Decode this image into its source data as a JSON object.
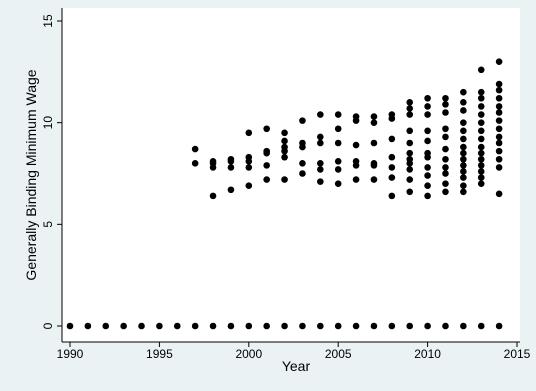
{
  "colors": {
    "background": "#eaf2f3",
    "plot_background": "#ffffff",
    "marker": "#000000",
    "axis": "#000000"
  },
  "chart_data": {
    "type": "scatter",
    "title": "",
    "xlabel": "Year",
    "ylabel": "Generally Binding Minimum Wage",
    "xlim": [
      1990,
      2015
    ],
    "ylim": [
      0,
      15
    ],
    "xticks": [
      1990,
      1995,
      2000,
      2005,
      2010,
      2015
    ],
    "yticks": [
      0,
      5,
      10,
      15
    ],
    "grid": false,
    "legend": "none",
    "marker": "filled-circle",
    "points": [
      [
        1990,
        0
      ],
      [
        1991,
        0
      ],
      [
        1992,
        0
      ],
      [
        1993,
        0
      ],
      [
        1994,
        0
      ],
      [
        1995,
        0
      ],
      [
        1996,
        0
      ],
      [
        1997,
        0
      ],
      [
        1998,
        0
      ],
      [
        1999,
        0
      ],
      [
        2000,
        0
      ],
      [
        2001,
        0
      ],
      [
        2002,
        0
      ],
      [
        2003,
        0
      ],
      [
        2004,
        0
      ],
      [
        2005,
        0
      ],
      [
        2006,
        0
      ],
      [
        2007,
        0
      ],
      [
        2008,
        0
      ],
      [
        2009,
        0
      ],
      [
        2010,
        0
      ],
      [
        2011,
        0
      ],
      [
        2012,
        0
      ],
      [
        2013,
        0
      ],
      [
        2014,
        0
      ],
      [
        1997,
        8.7
      ],
      [
        1997,
        8.0
      ],
      [
        1998,
        8.1
      ],
      [
        1998,
        8.0
      ],
      [
        1998,
        7.8
      ],
      [
        1998,
        6.4
      ],
      [
        1999,
        8.2
      ],
      [
        1999,
        8.1
      ],
      [
        1999,
        7.8
      ],
      [
        1999,
        6.7
      ],
      [
        2000,
        9.5
      ],
      [
        2000,
        8.3
      ],
      [
        2000,
        8.1
      ],
      [
        2000,
        7.8
      ],
      [
        2000,
        6.9
      ],
      [
        2001,
        9.7
      ],
      [
        2001,
        8.6
      ],
      [
        2001,
        8.5
      ],
      [
        2001,
        7.9
      ],
      [
        2001,
        7.2
      ],
      [
        2002,
        9.5
      ],
      [
        2002,
        9.1
      ],
      [
        2002,
        8.8
      ],
      [
        2002,
        8.6
      ],
      [
        2002,
        8.3
      ],
      [
        2002,
        7.2
      ],
      [
        2003,
        10.1
      ],
      [
        2003,
        9.0
      ],
      [
        2003,
        8.8
      ],
      [
        2003,
        8.0
      ],
      [
        2003,
        7.5
      ],
      [
        2004,
        10.4
      ],
      [
        2004,
        9.3
      ],
      [
        2004,
        9.0
      ],
      [
        2004,
        8.0
      ],
      [
        2004,
        7.7
      ],
      [
        2004,
        7.1
      ],
      [
        2005,
        10.4
      ],
      [
        2005,
        9.7
      ],
      [
        2005,
        9.0
      ],
      [
        2005,
        8.1
      ],
      [
        2005,
        7.7
      ],
      [
        2005,
        7.0
      ],
      [
        2006,
        10.3
      ],
      [
        2006,
        10.1
      ],
      [
        2006,
        8.9
      ],
      [
        2006,
        8.1
      ],
      [
        2006,
        7.9
      ],
      [
        2006,
        7.2
      ],
      [
        2007,
        10.3
      ],
      [
        2007,
        10.0
      ],
      [
        2007,
        9.0
      ],
      [
        2007,
        8.0
      ],
      [
        2007,
        7.9
      ],
      [
        2007,
        7.2
      ],
      [
        2008,
        10.4
      ],
      [
        2008,
        10.2
      ],
      [
        2008,
        9.2
      ],
      [
        2008,
        8.3
      ],
      [
        2008,
        7.8
      ],
      [
        2008,
        7.3
      ],
      [
        2008,
        6.4
      ],
      [
        2009,
        11.0
      ],
      [
        2009,
        10.7
      ],
      [
        2009,
        10.4
      ],
      [
        2009,
        9.6
      ],
      [
        2009,
        9.0
      ],
      [
        2009,
        8.5
      ],
      [
        2009,
        8.2
      ],
      [
        2009,
        8.0
      ],
      [
        2009,
        7.7
      ],
      [
        2009,
        7.2
      ],
      [
        2009,
        6.6
      ],
      [
        2010,
        11.2
      ],
      [
        2010,
        10.8
      ],
      [
        2010,
        10.4
      ],
      [
        2010,
        9.6
      ],
      [
        2010,
        9.1
      ],
      [
        2010,
        8.5
      ],
      [
        2010,
        8.3
      ],
      [
        2010,
        7.8
      ],
      [
        2010,
        7.4
      ],
      [
        2010,
        6.9
      ],
      [
        2010,
        6.4
      ],
      [
        2011,
        11.2
      ],
      [
        2011,
        10.9
      ],
      [
        2011,
        10.5
      ],
      [
        2011,
        9.7
      ],
      [
        2011,
        9.3
      ],
      [
        2011,
        8.7
      ],
      [
        2011,
        8.2
      ],
      [
        2011,
        7.8
      ],
      [
        2011,
        7.5
      ],
      [
        2011,
        7.0
      ],
      [
        2011,
        6.6
      ],
      [
        2012,
        11.5
      ],
      [
        2012,
        11.0
      ],
      [
        2012,
        10.6
      ],
      [
        2012,
        10.0
      ],
      [
        2012,
        9.6
      ],
      [
        2012,
        9.2
      ],
      [
        2012,
        8.8
      ],
      [
        2012,
        8.5
      ],
      [
        2012,
        8.2
      ],
      [
        2012,
        7.9
      ],
      [
        2012,
        7.6
      ],
      [
        2012,
        7.3
      ],
      [
        2012,
        6.9
      ],
      [
        2012,
        6.6
      ],
      [
        2013,
        12.6
      ],
      [
        2013,
        11.5
      ],
      [
        2013,
        11.2
      ],
      [
        2013,
        10.8
      ],
      [
        2013,
        10.4
      ],
      [
        2013,
        10.0
      ],
      [
        2013,
        9.6
      ],
      [
        2013,
        9.2
      ],
      [
        2013,
        8.8
      ],
      [
        2013,
        8.5
      ],
      [
        2013,
        8.2
      ],
      [
        2013,
        7.9
      ],
      [
        2013,
        7.6
      ],
      [
        2013,
        7.3
      ],
      [
        2013,
        7.0
      ],
      [
        2014,
        13.0
      ],
      [
        2014,
        11.9
      ],
      [
        2014,
        11.6
      ],
      [
        2014,
        11.2
      ],
      [
        2014,
        10.8
      ],
      [
        2014,
        10.5
      ],
      [
        2014,
        10.1
      ],
      [
        2014,
        9.7
      ],
      [
        2014,
        9.3
      ],
      [
        2014,
        9.0
      ],
      [
        2014,
        8.6
      ],
      [
        2014,
        8.2
      ],
      [
        2014,
        7.8
      ],
      [
        2014,
        6.5
      ]
    ]
  }
}
